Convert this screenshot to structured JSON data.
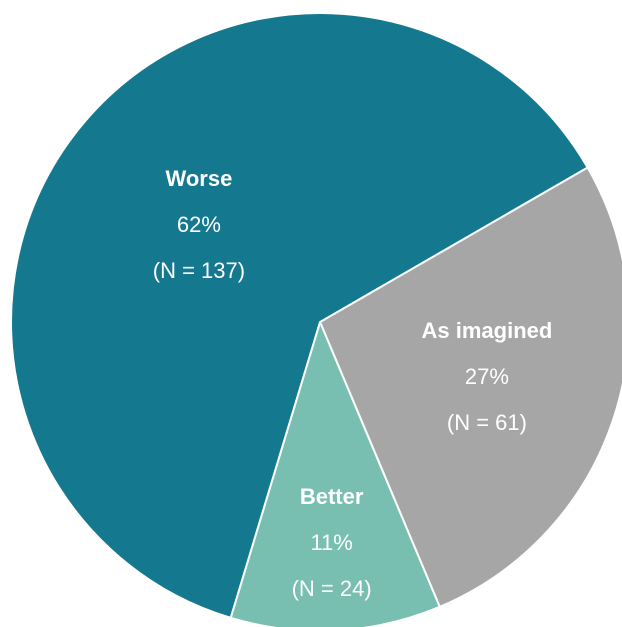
{
  "chart_data": {
    "type": "pie",
    "categories": [
      "As imagined",
      "Better",
      "Worse"
    ],
    "values": [
      27,
      11,
      62
    ],
    "value_labels": [
      "27%",
      "11%",
      "62%"
    ],
    "counts": [
      61,
      24,
      137
    ],
    "count_labels": [
      "(N = 61)",
      "(N = 24)",
      "(N = 137)"
    ],
    "colors": [
      "#a6a6a6",
      "#78bfb2",
      "#14788f"
    ]
  }
}
